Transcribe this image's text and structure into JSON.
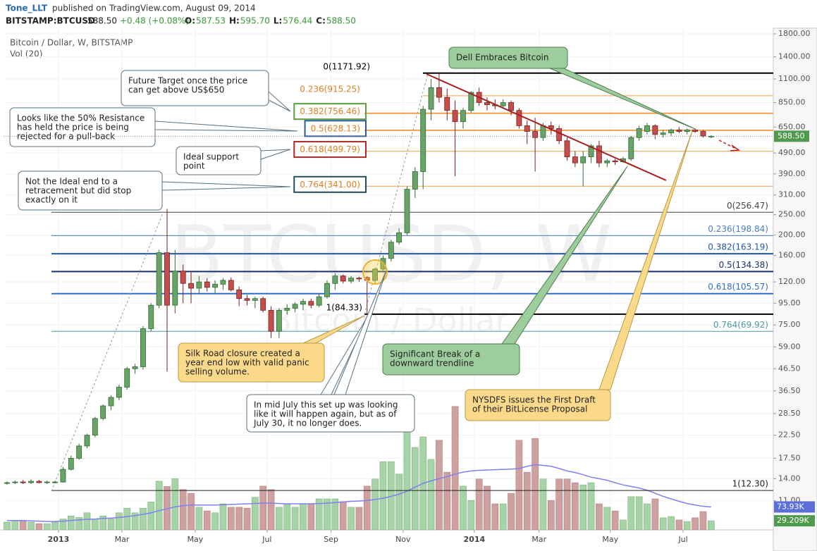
{
  "header": {
    "author": "Tone_LLT",
    "published": "published on TradingView.com, August 09, 2014",
    "symbol": "BITSTAMP:BTCUSD",
    "last": "588.50",
    "change": "+0.48 (+0.08%)",
    "quote": [
      {
        "key": "O:",
        "value": "587.53"
      },
      {
        "key": "H:",
        "value": "595.70"
      },
      {
        "key": "L:",
        "value": "576.44"
      },
      {
        "key": "C:",
        "value": "588.50"
      }
    ]
  },
  "chart_data": {
    "type": "candlestick",
    "title": "Bitcoin / Dollar, W, BITSTAMP",
    "volume_title": "Vol (20)",
    "watermark": "BTCUSD, W",
    "watermark_sub": "Bitcoin / Dollar",
    "log_scale": true,
    "grid": true,
    "up_color": "#6aa36a",
    "down_color": "#c44d4d",
    "volume_up_color": "#a6d4a6",
    "volume_down_color": "#cfa0a0",
    "ma_color": "#8080ee",
    "ylim": [
      6.97,
      1914.2
    ],
    "xlim": [
      -0.44,
      95.77
    ],
    "vlim": [
      0,
      1618
    ],
    "yticks": [
      {
        "value": 1800,
        "label": "1800.00"
      },
      {
        "value": 1400,
        "label": "1400.00"
      },
      {
        "value": 1100,
        "label": "1100.00"
      },
      {
        "value": 850,
        "label": "850.00"
      },
      {
        "value": 650,
        "label": "650.00"
      },
      {
        "value": 490,
        "label": "490.00"
      },
      {
        "value": 390,
        "label": "390.00"
      },
      {
        "value": 310,
        "label": "310.00"
      },
      {
        "value": 250,
        "label": "250.00"
      },
      {
        "value": 200,
        "label": "200.00"
      },
      {
        "value": 160,
        "label": "160.00"
      },
      {
        "value": 120,
        "label": "120.00"
      },
      {
        "value": 95,
        "label": "95.00"
      },
      {
        "value": 75,
        "label": "75.00"
      },
      {
        "value": 59,
        "label": "59.00"
      },
      {
        "value": 46.5,
        "label": "46.50"
      },
      {
        "value": 36.5,
        "label": "36.50"
      },
      {
        "value": 28.5,
        "label": "28.50"
      },
      {
        "value": 22.5,
        "label": "22.50"
      },
      {
        "value": 17.5,
        "label": "17.50"
      },
      {
        "value": 14,
        "label": "14.00"
      },
      {
        "value": 11,
        "label": "11.00"
      }
    ],
    "xticks": [
      {
        "value": 6.43,
        "label": "2013"
      },
      {
        "value": 14.36,
        "label": "Mar"
      },
      {
        "value": 23.52,
        "label": "May"
      },
      {
        "value": 32.5,
        "label": "Jul"
      },
      {
        "value": 40.5,
        "label": "Sep"
      },
      {
        "value": 49.5,
        "label": "Nov"
      },
      {
        "value": 58.4,
        "label": "2014"
      },
      {
        "value": 66.5,
        "label": "Mar"
      },
      {
        "value": 75.4,
        "label": "May"
      },
      {
        "value": 84.5,
        "label": "Jul"
      }
    ],
    "price_tag": {
      "value": 588.5,
      "label": "588.50"
    },
    "ma_tag": {
      "value": 73.93,
      "label": "73.93K"
    },
    "volume_tag": {
      "value": 29.209,
      "label": "29.209K"
    },
    "candles": [
      {
        "open": 13.3,
        "high": 13.6,
        "low": 13.1,
        "close": 13.4
      },
      {
        "open": 13.4,
        "high": 13.7,
        "low": 13.2,
        "close": 13.5
      },
      {
        "open": 13.5,
        "high": 13.8,
        "low": 13.2,
        "close": 13.4
      },
      {
        "open": 13.4,
        "high": 13.9,
        "low": 13.2,
        "close": 13.6
      },
      {
        "open": 13.6,
        "high": 13.8,
        "low": 13.3,
        "close": 13.4
      },
      {
        "open": 13.4,
        "high": 13.7,
        "low": 13.2,
        "close": 13.5
      },
      {
        "open": 13.5,
        "high": 13.7,
        "low": 13.3,
        "close": 13.5
      },
      {
        "open": 13.5,
        "high": 15.9,
        "low": 13.4,
        "close": 15.5
      },
      {
        "open": 15.5,
        "high": 18,
        "low": 15.3,
        "close": 17.5
      },
      {
        "open": 17.5,
        "high": 20.5,
        "low": 17.2,
        "close": 20
      },
      {
        "open": 20,
        "high": 22.9,
        "low": 19.5,
        "close": 22.5
      },
      {
        "open": 22.5,
        "high": 27.5,
        "low": 22,
        "close": 27
      },
      {
        "open": 27,
        "high": 31.5,
        "low": 26.5,
        "close": 31
      },
      {
        "open": 31,
        "high": 34.8,
        "low": 29.5,
        "close": 34
      },
      {
        "open": 34,
        "high": 39,
        "low": 33,
        "close": 38
      },
      {
        "open": 38,
        "high": 47.5,
        "low": 37,
        "close": 46.5
      },
      {
        "open": 46.5,
        "high": 49,
        "low": 44,
        "close": 47.5
      },
      {
        "open": 47.5,
        "high": 74,
        "low": 46,
        "close": 72
      },
      {
        "open": 72,
        "high": 95,
        "low": 70,
        "close": 93
      },
      {
        "open": 93,
        "high": 170,
        "low": 90,
        "close": 165
      },
      {
        "open": 165,
        "high": 266,
        "low": 45,
        "close": 93
      },
      {
        "open": 93,
        "high": 170,
        "low": 85,
        "close": 135
      },
      {
        "open": 135,
        "high": 145,
        "low": 95,
        "close": 118
      },
      {
        "open": 118,
        "high": 135,
        "low": 95,
        "close": 112
      },
      {
        "open": 112,
        "high": 128,
        "low": 105,
        "close": 120
      },
      {
        "open": 120,
        "high": 125,
        "low": 108,
        "close": 113
      },
      {
        "open": 113,
        "high": 122,
        "low": 106,
        "close": 117
      },
      {
        "open": 117,
        "high": 125,
        "low": 110,
        "close": 122
      },
      {
        "open": 122,
        "high": 126,
        "low": 108,
        "close": 110
      },
      {
        "open": 110,
        "high": 114,
        "low": 92,
        "close": 100
      },
      {
        "open": 100,
        "high": 104,
        "low": 93,
        "close": 98
      },
      {
        "open": 98,
        "high": 102,
        "low": 90,
        "close": 100
      },
      {
        "open": 100,
        "high": 102,
        "low": 86,
        "close": 88
      },
      {
        "open": 88,
        "high": 92,
        "low": 65,
        "close": 70
      },
      {
        "open": 70,
        "high": 90,
        "low": 65,
        "close": 88
      },
      {
        "open": 88,
        "high": 94,
        "low": 84,
        "close": 90
      },
      {
        "open": 90,
        "high": 96,
        "low": 86,
        "close": 94
      },
      {
        "open": 94,
        "high": 100,
        "low": 88,
        "close": 97
      },
      {
        "open": 97,
        "high": 100,
        "low": 90,
        "close": 93
      },
      {
        "open": 93,
        "high": 105,
        "low": 91,
        "close": 102
      },
      {
        "open": 102,
        "high": 122,
        "low": 100,
        "close": 118
      },
      {
        "open": 118,
        "high": 132,
        "low": 110,
        "close": 128
      },
      {
        "open": 128,
        "high": 130,
        "low": 118,
        "close": 121
      },
      {
        "open": 121,
        "high": 128,
        "low": 118,
        "close": 125
      },
      {
        "open": 125,
        "high": 127,
        "low": 120,
        "close": 124
      },
      {
        "open": 126,
        "high": 128,
        "low": 84.33,
        "close": 122
      },
      {
        "open": 122,
        "high": 140,
        "low": 118,
        "close": 138
      },
      {
        "open": 138,
        "high": 160,
        "low": 135,
        "close": 155
      },
      {
        "open": 155,
        "high": 190,
        "low": 150,
        "close": 185
      },
      {
        "open": 185,
        "high": 215,
        "low": 180,
        "close": 205
      },
      {
        "open": 205,
        "high": 340,
        "low": 200,
        "close": 330
      },
      {
        "open": 330,
        "high": 420,
        "low": 300,
        "close": 400
      },
      {
        "open": 400,
        "high": 820,
        "low": 330,
        "close": 790
      },
      {
        "open": 790,
        "high": 1100,
        "low": 700,
        "close": 1000
      },
      {
        "open": 1000,
        "high": 1171.92,
        "low": 850,
        "close": 900
      },
      {
        "open": 900,
        "high": 990,
        "low": 700,
        "close": 780
      },
      {
        "open": 780,
        "high": 870,
        "low": 380,
        "close": 690
      },
      {
        "open": 690,
        "high": 800,
        "low": 640,
        "close": 780
      },
      {
        "open": 780,
        "high": 960,
        "low": 760,
        "close": 950
      },
      {
        "open": 950,
        "high": 1000,
        "low": 820,
        "close": 850
      },
      {
        "open": 850,
        "high": 900,
        "low": 780,
        "close": 830
      },
      {
        "open": 830,
        "high": 880,
        "low": 790,
        "close": 820
      },
      {
        "open": 820,
        "high": 880,
        "low": 800,
        "close": 850
      },
      {
        "open": 850,
        "high": 870,
        "low": 740,
        "close": 780
      },
      {
        "open": 780,
        "high": 800,
        "low": 640,
        "close": 660
      },
      {
        "open": 660,
        "high": 700,
        "low": 540,
        "close": 620
      },
      {
        "open": 620,
        "high": 720,
        "low": 400,
        "close": 580
      },
      {
        "open": 580,
        "high": 680,
        "low": 560,
        "close": 660
      },
      {
        "open": 660,
        "high": 690,
        "low": 600,
        "close": 640
      },
      {
        "open": 640,
        "high": 660,
        "low": 540,
        "close": 560
      },
      {
        "open": 560,
        "high": 580,
        "low": 450,
        "close": 470
      },
      {
        "open": 470,
        "high": 500,
        "low": 420,
        "close": 440
      },
      {
        "open": 440,
        "high": 500,
        "low": 340,
        "close": 470
      },
      {
        "open": 470,
        "high": 540,
        "low": 440,
        "close": 530
      },
      {
        "open": 530,
        "high": 560,
        "low": 420,
        "close": 440
      },
      {
        "open": 440,
        "high": 460,
        "low": 420,
        "close": 450
      },
      {
        "open": 450,
        "high": 460,
        "low": 430,
        "close": 445
      },
      {
        "open": 445,
        "high": 470,
        "low": 440,
        "close": 460
      },
      {
        "open": 460,
        "high": 590,
        "low": 450,
        "close": 580
      },
      {
        "open": 580,
        "high": 660,
        "low": 560,
        "close": 640
      },
      {
        "open": 620,
        "high": 680,
        "low": 600,
        "close": 660
      },
      {
        "open": 660,
        "high": 670,
        "low": 570,
        "close": 600
      },
      {
        "open": 600,
        "high": 630,
        "low": 580,
        "close": 610
      },
      {
        "open": 610,
        "high": 640,
        "low": 590,
        "close": 630
      },
      {
        "open": 630,
        "high": 650,
        "low": 610,
        "close": 620
      },
      {
        "open": 620,
        "high": 640,
        "low": 600,
        "close": 630
      },
      {
        "open": 630,
        "high": 640,
        "low": 610,
        "close": 620
      },
      {
        "open": 620,
        "high": 630,
        "low": 580,
        "close": 590
      },
      {
        "open": 587.53,
        "high": 595.7,
        "low": 576.44,
        "close": 588.5
      }
    ],
    "volume": [
      25,
      30,
      30,
      25,
      20,
      20,
      25,
      35,
      45,
      40,
      55,
      35,
      45,
      35,
      55,
      70,
      55,
      70,
      90,
      157,
      140,
      165,
      130,
      118,
      73,
      61,
      55,
      84,
      73,
      73,
      70,
      105,
      141,
      130,
      73,
      84,
      73,
      84,
      84,
      100,
      100,
      100,
      91,
      73,
      73,
      141,
      164,
      220,
      220,
      180,
      334,
      266,
      300,
      227,
      289,
      186,
      398,
      141,
      95,
      164,
      141,
      84,
      84,
      118,
      289,
      186,
      295,
      164,
      95,
      164,
      164,
      152,
      145,
      152,
      84,
      73,
      61,
      32,
      107,
      107,
      84,
      100,
      39,
      43,
      32,
      27,
      39,
      59,
      29.209
    ],
    "volume_ma": [
      30,
      30,
      30,
      29,
      28,
      27,
      27,
      28,
      30,
      32,
      34,
      35,
      37,
      38,
      40,
      43,
      46,
      50,
      55,
      62,
      68,
      74,
      78,
      80,
      80,
      80,
      80,
      81,
      82,
      83,
      84,
      85,
      86,
      86,
      85,
      84,
      84,
      84,
      84,
      85,
      86,
      88,
      90,
      92,
      93,
      95,
      98,
      102,
      108,
      115,
      125,
      138,
      150,
      158,
      165,
      172,
      180,
      186,
      190,
      192,
      193,
      194,
      195,
      196,
      198,
      205,
      210,
      208,
      205,
      198,
      190,
      185,
      178,
      170,
      165,
      160,
      152,
      145,
      140,
      135,
      128,
      118,
      108,
      100,
      92,
      85,
      80,
      76,
      73.93
    ],
    "fib_upper": [
      {
        "label": "0(1171.92)",
        "value": 1171.92,
        "color": "#000000"
      },
      {
        "label": "0.236(915.25)",
        "value": 915.25,
        "color": "#f0a04b"
      },
      {
        "label": "0.382(756.46)",
        "value": 756.46,
        "color": "#f0a04b",
        "box": "#5f9e3f"
      },
      {
        "label": "0.5(628.13)",
        "value": 628.13,
        "color": "#f0a04b",
        "box": "#2c5aa0"
      },
      {
        "label": "0.618(499.79)",
        "value": 499.79,
        "color": "#f0a04b",
        "box": "#b02a2a"
      },
      {
        "label": "0.764(341.00)",
        "value": 341.0,
        "color": "#f0a04b",
        "box": "#1f4f5a"
      }
    ],
    "fib_lower": [
      {
        "label": "0(256.47)",
        "value": 256.47,
        "color": "#444444"
      },
      {
        "label": "0.236(198.84)",
        "value": 198.84,
        "color": "#4a7fc1"
      },
      {
        "label": "0.382(163.19)",
        "value": 163.19,
        "color": "#2255aa"
      },
      {
        "label": "0.5(134.38)",
        "value": 134.38,
        "color": "#1a2f6e"
      },
      {
        "label": "0.618(105.57)",
        "value": 105.57,
        "color": "#2f6fc8"
      },
      {
        "label": "0.764(69.92)",
        "value": 69.92,
        "color": "#4a9aa8"
      },
      {
        "label": "1(84.33)",
        "value": 84.33,
        "color": "#000000"
      },
      {
        "label": "1(12.30)",
        "value": 12.3,
        "color": "#222222"
      }
    ],
    "annotations": [
      {
        "lines": [
          "Future Target once the price",
          "can get above US$650"
        ]
      },
      {
        "lines": [
          "Looks like the 50% Resistance",
          "has held the price is being",
          "rejected for a pull-back"
        ]
      },
      {
        "lines": [
          "Ideal support",
          "point"
        ]
      },
      {
        "lines": [
          "Not the Ideal end to a",
          "retracement but did stop",
          "exactly on it"
        ]
      },
      {
        "lines": [
          "Silk Road closure created a",
          "year end low with valid panic",
          "selling volume."
        ]
      },
      {
        "lines": [
          "In mid July this set up was looking",
          "like it will happen again, but as of",
          "July 30, it no longer does."
        ]
      },
      {
        "lines": [
          "Significant Break of a",
          "downward trendline"
        ]
      },
      {
        "lines": [
          "NYSDFS issues the First Draft",
          "of their BitLicense Proposal"
        ]
      },
      {
        "lines": [
          "Dell Embraces Bitcoin"
        ]
      }
    ]
  }
}
